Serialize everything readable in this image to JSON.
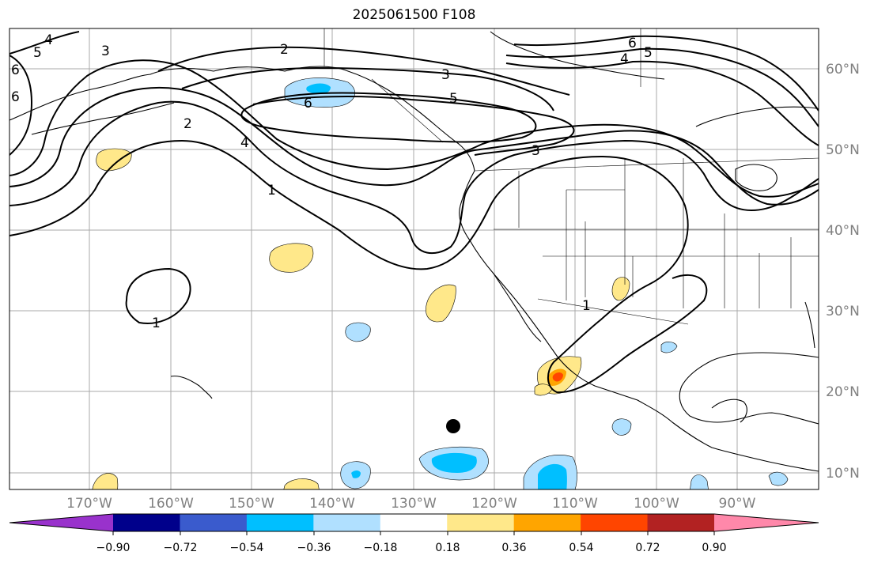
{
  "map": {
    "title": "2025061500 F108",
    "lat_labels": [
      "60°N",
      "50°N",
      "40°N",
      "30°N",
      "20°N",
      "10°N"
    ],
    "lon_labels": [
      "170°W",
      "160°W",
      "150°W",
      "140°W",
      "130°W",
      "120°W",
      "110°W",
      "100°W",
      "90°W"
    ],
    "contour_labels": [
      "1",
      "1",
      "1",
      "2",
      "2",
      "3",
      "3",
      "3",
      "4",
      "4",
      "4",
      "5",
      "5",
      "5",
      "6",
      "6",
      "6",
      "6"
    ],
    "colors": {
      "negative_strong": "#00bfff",
      "negative_weak": "#b0e0ff",
      "positive_weak": "#ffe88a",
      "positive_mid": "#ffa500",
      "positive_strong": "#ff4500"
    }
  },
  "colorbar": {
    "tick_labels": [
      "−0.90",
      "−0.72",
      "−0.54",
      "−0.36",
      "−0.18",
      "0.18",
      "0.36",
      "0.54",
      "0.72",
      "0.90"
    ],
    "colors": [
      "#9932cc",
      "#00008b",
      "#3a5bcd",
      "#00bfff",
      "#b0e0ff",
      "#ffffff",
      "#ffe88a",
      "#ffa500",
      "#ff4500",
      "#b22222",
      "#ff88aa"
    ]
  }
}
